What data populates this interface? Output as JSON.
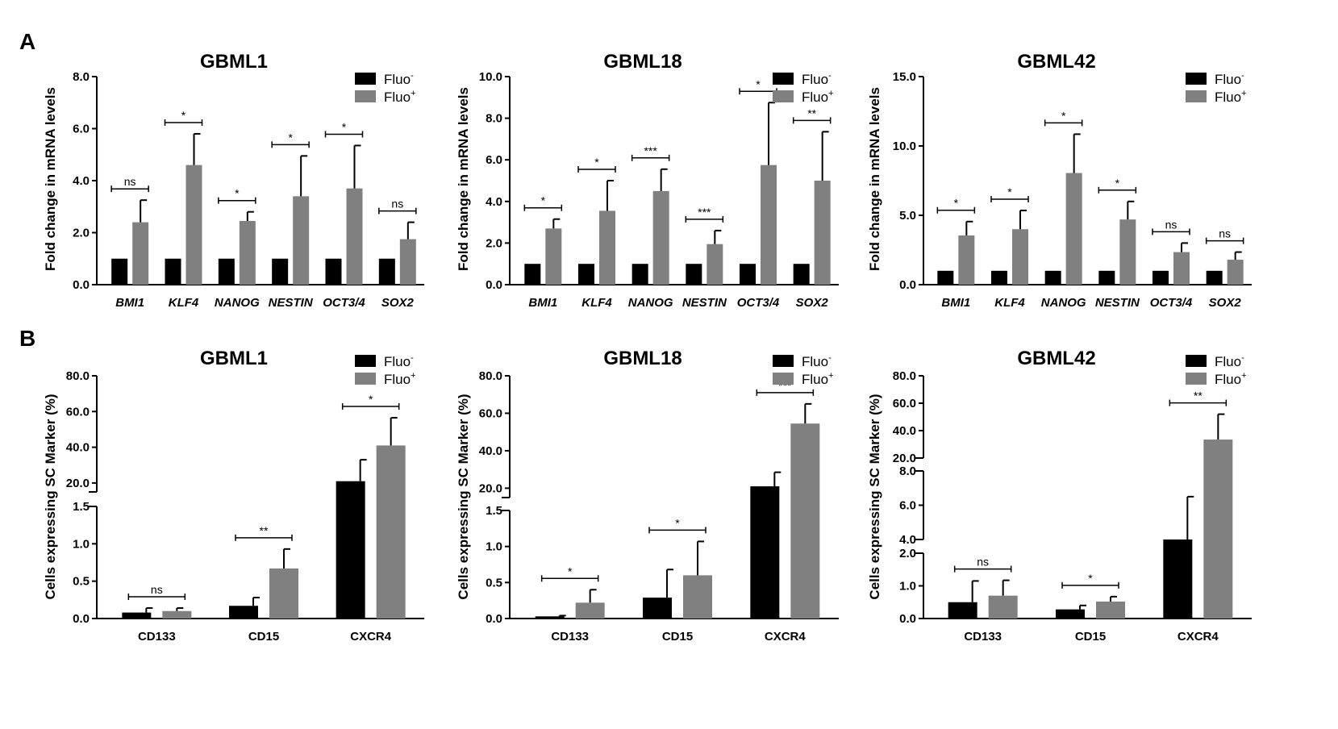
{
  "panels": {
    "a": "A",
    "b": "B"
  },
  "legend": {
    "neg_base": "Fluo",
    "neg_sup": "-",
    "pos_base": "Fluo",
    "pos_sup": "+"
  },
  "colors": {
    "neg": "#000000",
    "pos": "#808080",
    "axis": "#000000"
  },
  "chart_data": [
    {
      "type": "bar",
      "title": "GBML1",
      "ylabel": "Fold change in mRNA levels",
      "italic_categories": true,
      "ylim": [
        0,
        8
      ],
      "ticks": [
        0,
        2,
        4,
        6,
        8
      ],
      "tick_labels": [
        "0.0",
        "2.0",
        "4.0",
        "6.0",
        "8.0"
      ],
      "categories": [
        "BMI1",
        "KLF4",
        "NANOG",
        "NESTIN",
        "OCT3/4",
        "SOX2"
      ],
      "series": [
        {
          "name": "Fluo-",
          "values": [
            1,
            1,
            1,
            1,
            1,
            1
          ],
          "errors": [
            0,
            0,
            0,
            0,
            0,
            0
          ]
        },
        {
          "name": "Fluo+",
          "values": [
            2.4,
            4.6,
            2.45,
            3.4,
            3.7,
            1.75
          ],
          "errors": [
            0.85,
            1.2,
            0.35,
            1.55,
            1.65,
            0.65
          ]
        }
      ],
      "significance": [
        "ns",
        "*",
        "*",
        "*",
        "*",
        "ns"
      ],
      "legend_position": "top-right"
    },
    {
      "type": "bar",
      "title": "GBML18",
      "ylabel": "Fold change in mRNA levels",
      "italic_categories": true,
      "ylim": [
        0,
        10
      ],
      "ticks": [
        0,
        2,
        4,
        6,
        8,
        10
      ],
      "tick_labels": [
        "0.0",
        "2.0",
        "4.0",
        "6.0",
        "8.0",
        "10.0"
      ],
      "categories": [
        "BMI1",
        "KLF4",
        "NANOG",
        "NESTIN",
        "OCT3/4",
        "SOX2"
      ],
      "series": [
        {
          "name": "Fluo-",
          "values": [
            1,
            1,
            1,
            1,
            1,
            1
          ],
          "errors": [
            0,
            0,
            0,
            0,
            0,
            0
          ]
        },
        {
          "name": "Fluo+",
          "values": [
            2.7,
            3.55,
            4.5,
            1.95,
            5.75,
            5.0
          ],
          "errors": [
            0.45,
            1.45,
            1.05,
            0.65,
            3.0,
            2.35
          ]
        }
      ],
      "significance": [
        "*",
        "*",
        "***",
        "***",
        "*",
        "**"
      ],
      "legend_position": "top-right"
    },
    {
      "type": "bar",
      "title": "GBML42",
      "ylabel": "Fold change in mRNA levels",
      "italic_categories": true,
      "ylim": [
        0,
        15
      ],
      "ticks": [
        0,
        5,
        10,
        15
      ],
      "tick_labels": [
        "0.0",
        "5.0",
        "10.0",
        "15.0"
      ],
      "categories": [
        "BMI1",
        "KLF4",
        "NANOG",
        "NESTIN",
        "OCT3/4",
        "SOX2"
      ],
      "series": [
        {
          "name": "Fluo-",
          "values": [
            1,
            1,
            1,
            1,
            1,
            1
          ],
          "errors": [
            0,
            0,
            0,
            0,
            0,
            0
          ]
        },
        {
          "name": "Fluo+",
          "values": [
            3.55,
            4.0,
            8.05,
            4.7,
            2.35,
            1.8
          ],
          "errors": [
            1.0,
            1.35,
            2.8,
            1.3,
            0.65,
            0.55
          ]
        }
      ],
      "significance": [
        "*",
        "*",
        "*",
        "*",
        "ns",
        "ns"
      ],
      "legend_position": "top-right"
    },
    {
      "type": "bar",
      "title": "GBML1",
      "ylabel": "Cells expressing SC Marker (%)",
      "italic_categories": false,
      "axis_segments": [
        {
          "range": [
            0,
            1.5
          ],
          "ticks": [
            0,
            0.5,
            1,
            1.5
          ],
          "tick_labels": [
            "0.0",
            "0.5",
            "1.0",
            "1.5"
          ]
        },
        {
          "range": [
            15,
            80
          ],
          "ticks": [
            20,
            40,
            60,
            80
          ],
          "tick_labels": [
            "20.0",
            "40.0",
            "60.0",
            "80.0"
          ]
        }
      ],
      "categories": [
        "CD133",
        "CD15",
        "CXCR4"
      ],
      "series": [
        {
          "name": "Fluo-",
          "values": [
            0.08,
            0.17,
            21
          ],
          "errors": [
            0.06,
            0.11,
            12
          ]
        },
        {
          "name": "Fluo+",
          "values": [
            0.1,
            0.67,
            41
          ],
          "errors": [
            0.04,
            0.26,
            15.5
          ]
        }
      ],
      "significance": [
        "ns",
        "**",
        "*"
      ],
      "legend_position": "top-right"
    },
    {
      "type": "bar",
      "title": "GBML18",
      "ylabel": "Cells expressing SC Marker (%)",
      "italic_categories": false,
      "axis_segments": [
        {
          "range": [
            0,
            1.5
          ],
          "ticks": [
            0,
            0.5,
            1,
            1.5
          ],
          "tick_labels": [
            "0.0",
            "0.5",
            "1.0",
            "1.5"
          ]
        },
        {
          "range": [
            15,
            80
          ],
          "ticks": [
            20,
            40,
            60,
            80
          ],
          "tick_labels": [
            "20.0",
            "40.0",
            "60.0",
            "80.0"
          ]
        }
      ],
      "categories": [
        "CD133",
        "CD15",
        "CXCR4"
      ],
      "series": [
        {
          "name": "Fluo-",
          "values": [
            0.03,
            0.29,
            21
          ],
          "errors": [
            0.01,
            0.39,
            7.5
          ]
        },
        {
          "name": "Fluo+",
          "values": [
            0.22,
            0.6,
            54.5
          ],
          "errors": [
            0.18,
            0.47,
            10.5
          ]
        }
      ],
      "significance": [
        "*",
        "*",
        "***"
      ],
      "legend_position": "top-right"
    },
    {
      "type": "bar",
      "title": "GBML42",
      "ylabel": "Cells expressing SC Marker (%)",
      "italic_categories": false,
      "axis_segments": [
        {
          "range": [
            0,
            2
          ],
          "ticks": [
            0,
            1,
            2
          ],
          "tick_labels": [
            "0.0",
            "1.0",
            "2.0"
          ]
        },
        {
          "range": [
            4,
            8
          ],
          "ticks": [
            4,
            6,
            8
          ],
          "tick_labels": [
            "4.0",
            "6.0",
            "8.0"
          ]
        },
        {
          "range": [
            20,
            80
          ],
          "ticks": [
            20,
            40,
            60,
            80
          ],
          "tick_labels": [
            "20.0",
            "40.0",
            "60.0",
            "80.0"
          ]
        }
      ],
      "categories": [
        "CD133",
        "CD15",
        "CXCR4"
      ],
      "series": [
        {
          "name": "Fluo-",
          "values": [
            0.5,
            0.28,
            4.0
          ],
          "errors": [
            0.65,
            0.12,
            2.5
          ]
        },
        {
          "name": "Fluo+",
          "values": [
            0.7,
            0.52,
            33.5
          ],
          "errors": [
            0.47,
            0.15,
            18.5
          ]
        }
      ],
      "significance": [
        "ns",
        "*",
        "**"
      ],
      "legend_position": "top-right"
    }
  ]
}
